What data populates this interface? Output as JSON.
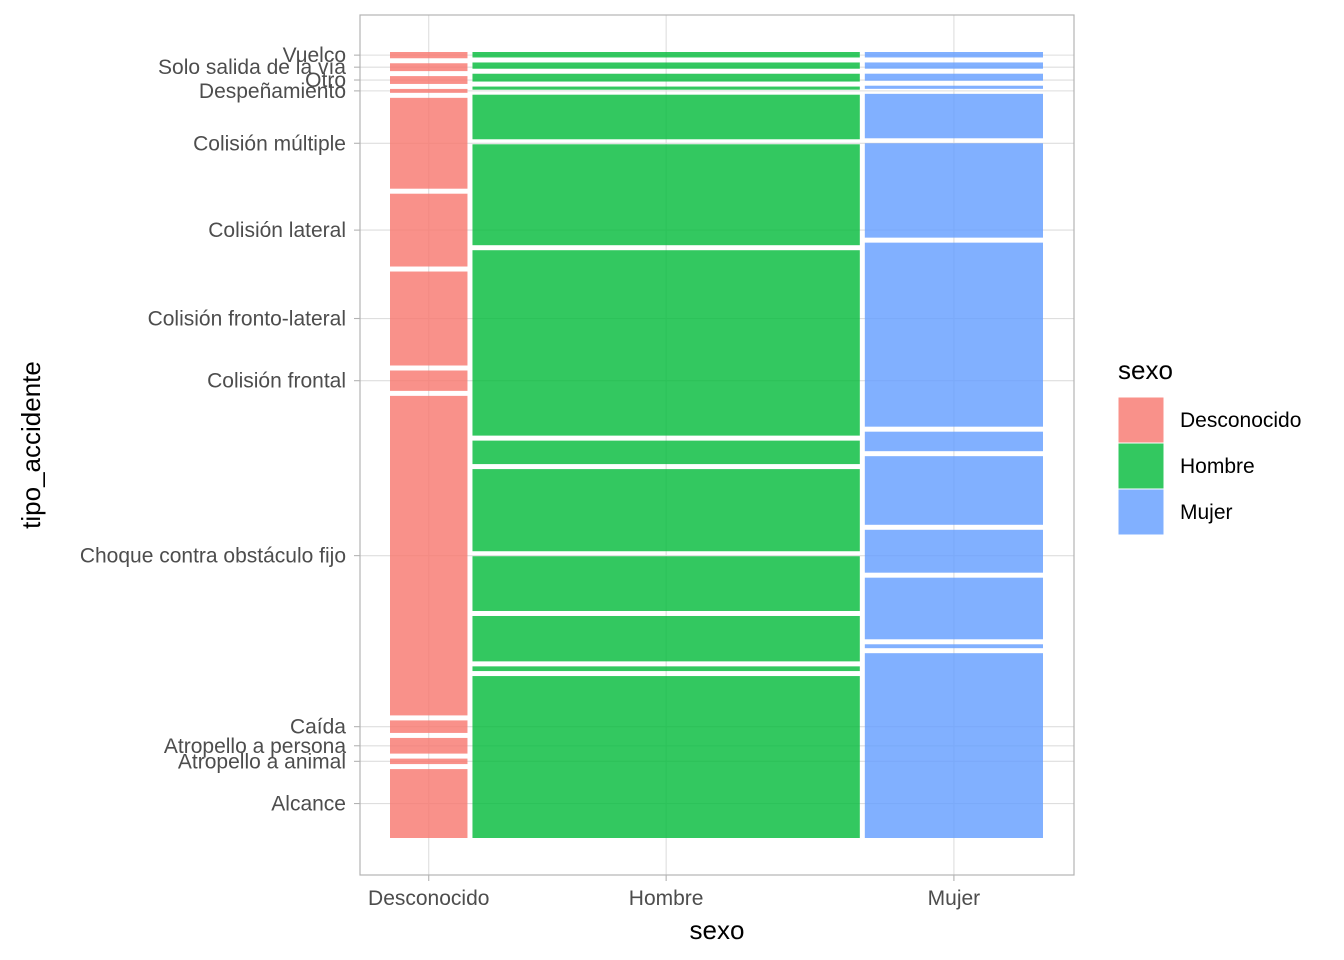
{
  "chart_data": {
    "type": "mosaic",
    "xlabel": "sexo",
    "ylabel": "tipo_accidente",
    "grid": true,
    "legend_title": "sexo",
    "legend_position": "right",
    "columns": [
      {
        "name": "Desconocido",
        "width": 0.1,
        "color": "#F8766D"
      },
      {
        "name": "Hombre",
        "width": 0.5,
        "color": "#00BA38"
      },
      {
        "name": "Mujer",
        "width": 0.23,
        "color": "#619CFF"
      }
    ],
    "y_categories": [
      "Alcance",
      "Atropello a animal",
      "Atropello a persona",
      "Caída",
      "Choque contra obstáculo fijo",
      "Colisión frontal",
      "Colisión fronto-lateral",
      "Colisión lateral",
      "Colisión múltiple",
      "Despeñamiento",
      "Otro",
      "Solo salida de la vía",
      "Vuelco"
    ],
    "y_tick_labels": [
      "Alcance",
      "Atropello a animal",
      "Atropello a persona",
      "Caída",
      "Choque contra obstáculo fijo",
      "Colisión frontal",
      "Colisión fronto-lateral",
      "Colisión lateral",
      "Colisión múltiple",
      "Despeñamiento",
      "Otro",
      "Solo salida de la vía",
      "Vuelco"
    ],
    "proportions": {
      "Desconocido": [
        0.088,
        0.007,
        0.02,
        0.016,
        0.408,
        0.026,
        0.12,
        0.093,
        0.116,
        0.005,
        0.01,
        0.01,
        0.008
      ],
      "Hombre": [
        0.207,
        0.006,
        0.058,
        0.07,
        0.105,
        0.03,
        0.237,
        0.129,
        0.057,
        0.004,
        0.01,
        0.008,
        0.007
      ],
      "Mujer": [
        0.237,
        0.005,
        0.079,
        0.055,
        0.088,
        0.025,
        0.236,
        0.121,
        0.057,
        0.004,
        0.009,
        0.008,
        0.007
      ]
    }
  }
}
